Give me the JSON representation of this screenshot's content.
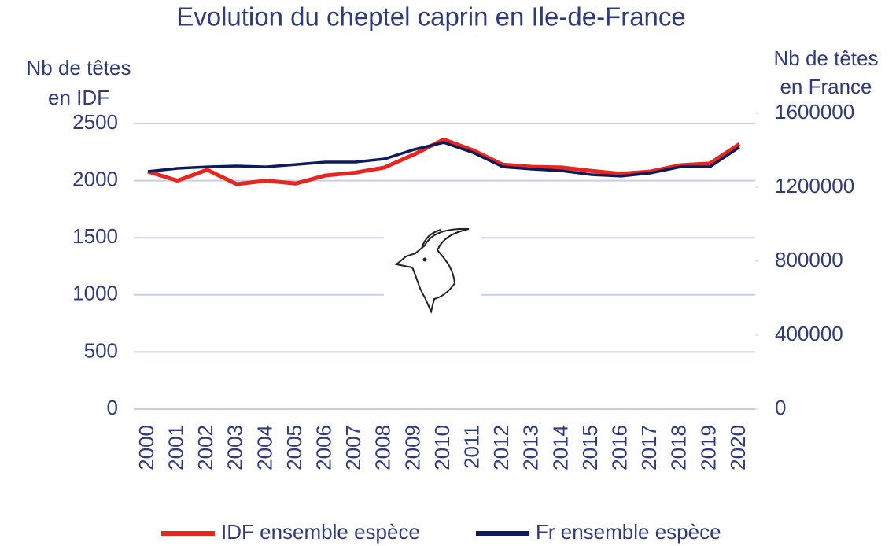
{
  "chart_data": {
    "type": "line",
    "title": "Evolution du cheptel caprin en Ile-de-France",
    "y_label": [
      "Nb de têtes",
      "en IDF"
    ],
    "y2_label": [
      "Nb de têtes",
      "en France"
    ],
    "categories": [
      "2000",
      "2001",
      "2002",
      "2003",
      "2004",
      "2005",
      "2006",
      "2007",
      "2008",
      "2009",
      "2010",
      "2011",
      "2012",
      "2013",
      "2014",
      "2015",
      "2016",
      "2017",
      "2018",
      "2019",
      "2020"
    ],
    "series": [
      {
        "name": "IDF ensemble espèce",
        "color": "#e8261f",
        "values": [
          2080,
          2000,
          2095,
          1970,
          2000,
          1975,
          2045,
          2070,
          2115,
          2230,
          2360,
          2265,
          2140,
          2120,
          2115,
          2085,
          2060,
          2080,
          2135,
          2150,
          2320
        ]
      },
      {
        "name": "Fr ensemble espèce",
        "color": "#0d1a5c",
        "axis": "y2",
        "values": [
          1285000,
          1302000,
          1310000,
          1315000,
          1310000,
          1323000,
          1336000,
          1336000,
          1353000,
          1404000,
          1442000,
          1387000,
          1310000,
          1298000,
          1289000,
          1268000,
          1260000,
          1277000,
          1310000,
          1310000,
          1417000
        ]
      }
    ],
    "ylim": [
      0,
      2500
    ],
    "yticks": [
      0,
      500,
      1000,
      1500,
      2000,
      2500
    ],
    "y2lim": [
      0,
      1600000
    ],
    "y2ticks": [
      0,
      400000,
      800000,
      1200000,
      1600000
    ],
    "grid": true,
    "legend": "bottom"
  }
}
